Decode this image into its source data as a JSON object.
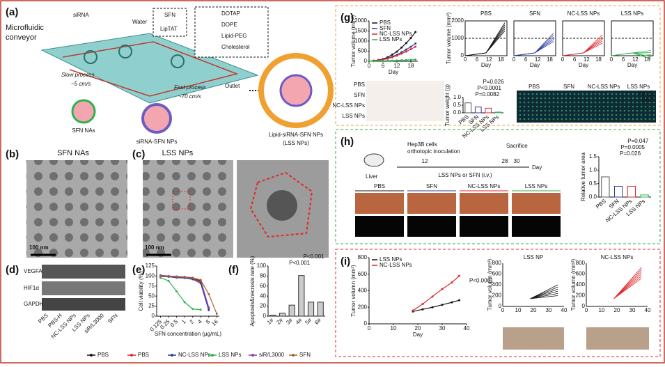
{
  "panel_a": {
    "label": "(a)",
    "conveyor": [
      "Microfluidic",
      "conveyor"
    ],
    "sirna": "siRNA",
    "water": "Water",
    "sfn": "SFN",
    "liptat": "LipTAT",
    "components": [
      "DOTAP",
      "DOPE",
      "Lipid-PEG",
      "Cholesterol"
    ],
    "slow": "Slow process",
    "slow_speed": "~5 cm/s",
    "fast": "Fast process",
    "fast_speed": "~70 cm/s",
    "outlet": "Outlet",
    "products": [
      "SFN NAs",
      "siRNA-SFN NPs",
      "Lipid-siRNA-SFN NPs",
      "(LSS NPs)"
    ]
  },
  "panel_b": {
    "label": "(b)",
    "title": "SFN NAs",
    "scale": "100 nm"
  },
  "panel_c": {
    "label": "(c)",
    "title": "LSS NPs",
    "scale": "100 nm"
  },
  "panel_d": {
    "label": "(d)",
    "rows": [
      "VEGFA",
      "HIF1α",
      "GAPDH"
    ],
    "lanes": [
      "PBS",
      "PBS-H",
      "NC-LSS NPs",
      "LSS NPs",
      "siR/L3000",
      "SFN"
    ]
  },
  "panel_e": {
    "label": "(e)",
    "chart": {
      "type": "line",
      "xscale": "log",
      "xlabel": "SFN concentration (μg/mL)",
      "ylabel": "Cell viability (%)",
      "xlim": [
        0.09,
        20
      ],
      "ylim": [
        0,
        125
      ],
      "yticks": [
        0,
        25,
        50,
        75,
        100,
        125
      ],
      "xticks": [
        0.125,
        0.25,
        0.5,
        1,
        2,
        4,
        8,
        16
      ],
      "series": [
        {
          "name": "PBS",
          "color": "#111111",
          "x": [
            0.125,
            0.25,
            0.5,
            1,
            2,
            4,
            8
          ],
          "values": [
            100,
            99,
            98,
            97,
            95,
            88,
            20
          ]
        },
        {
          "name": "PBS",
          "color": "#e0262b",
          "x": [
            0.125,
            0.25,
            0.5,
            1,
            2,
            4,
            8
          ],
          "values": [
            101,
            100,
            99,
            97,
            94,
            85,
            18
          ]
        },
        {
          "name": "NC-LSS NPs",
          "color": "#2e3d9e",
          "x": [
            0.125,
            0.25,
            0.5,
            1,
            2,
            4,
            8
          ],
          "values": [
            99,
            98,
            96,
            95,
            92,
            82,
            15
          ]
        },
        {
          "name": "LSS NPs",
          "color": "#2bb24c",
          "x": [
            0.125,
            0.25,
            0.5,
            1,
            2,
            4
          ],
          "values": [
            96,
            88,
            62,
            35,
            18,
            16
          ]
        },
        {
          "name": "siR/L3000",
          "color": "#8e3fa5",
          "x": [
            0.125,
            0.25,
            0.5,
            1,
            2,
            4,
            8
          ],
          "values": [
            102,
            100,
            99,
            98,
            96,
            90,
            22
          ]
        },
        {
          "name": "SFN",
          "color": "#a0662a",
          "x": [
            0.125,
            0.25,
            0.5,
            1,
            2,
            4,
            8,
            16
          ],
          "values": [
            100,
            99,
            98,
            97,
            95,
            90,
            55,
            6
          ]
        }
      ]
    }
  },
  "panel_f": {
    "label": "(f)",
    "chart": {
      "type": "bar",
      "ylabel": "Apoptosis&necrosis rate (%)",
      "categories": [
        "1#",
        "2#",
        "3#",
        "4#",
        "5#",
        "6#"
      ],
      "values": [
        2,
        6,
        22,
        81,
        28,
        28
      ],
      "color": "#cccccc",
      "ylim": [
        0,
        100
      ],
      "yticks": [
        0,
        20,
        40,
        60,
        80,
        100
      ],
      "annotations": [
        "P<0.001",
        "P<0.001"
      ]
    }
  },
  "panel_g": {
    "label": "(g)",
    "main": {
      "type": "line",
      "xlabel": "Day",
      "ylabel": "Tumor volume (mm³)",
      "xlim": [
        0,
        21
      ],
      "ylim": [
        0,
        2000
      ],
      "xticks": [
        0,
        6,
        12,
        18
      ],
      "yticks": [
        0,
        500,
        1000,
        1500,
        2000
      ],
      "series": [
        {
          "name": "PBS",
          "color": "#111111",
          "x": [
            0,
            2,
            4,
            6,
            8,
            10,
            12,
            14,
            16,
            18,
            20
          ],
          "values": [
            0,
            30,
            60,
            110,
            200,
            330,
            480,
            680,
            900,
            1150,
            1450
          ]
        },
        {
          "name": "SFN",
          "color": "#2e3d9e",
          "x": [
            0,
            2,
            4,
            6,
            8,
            10,
            12,
            14,
            16,
            18,
            20
          ],
          "values": [
            0,
            25,
            50,
            90,
            150,
            230,
            320,
            450,
            580,
            720,
            880
          ]
        },
        {
          "name": "NC-LSS NPs",
          "color": "#e0262b",
          "x": [
            0,
            2,
            4,
            6,
            8,
            10,
            12,
            14,
            16,
            18,
            20
          ],
          "values": [
            0,
            25,
            45,
            80,
            130,
            200,
            280,
            380,
            480,
            600,
            720
          ]
        },
        {
          "name": "LSS NPs",
          "color": "#2bb24c",
          "x": [
            0,
            2,
            4,
            6,
            8,
            10,
            12,
            14,
            16,
            18,
            20
          ],
          "values": [
            0,
            10,
            15,
            20,
            25,
            30,
            40,
            50,
            60,
            70,
            80
          ]
        }
      ]
    },
    "small_ylabel": "Tumor volume (mm³)",
    "small_xlabel": "Day",
    "small_titles": [
      "PBS",
      "SFN",
      "NC-LSS NPs",
      "LSS NPs"
    ],
    "small_xticks": [
      0,
      6,
      12,
      18
    ],
    "small_yticks": [
      0,
      1000,
      2000
    ],
    "photo_rows": [
      "PBS",
      "SFN",
      "NC-LSS NPs",
      "LSS NPs"
    ],
    "weight": {
      "type": "bar",
      "ylabel": "Tumor weight (g)",
      "categories": [
        "PBS",
        "SFN",
        "NC-LSS NPs",
        "LSS NPs"
      ],
      "values": [
        0.65,
        0.38,
        0.3,
        0.05
      ],
      "colors": [
        "#555555",
        "#2e3d9e",
        "#e0262b",
        "#2bb24c"
      ],
      "ylim": [
        0,
        1
      ],
      "yticks": [
        {
          "value": 0,
          "label": "0.0"
        },
        {
          "value": 0.5,
          "label": "0.5"
        },
        {
          "value": 1,
          "label": "1.0"
        }
      ],
      "annotations": [
        "P=0.0082",
        "P<0.0001",
        "P=0.026"
      ]
    },
    "if_titles": [
      "PBS",
      "SFN",
      "NC-LSS NPs",
      "LSS NPs"
    ],
    "if_legend": [
      "HIF-1α",
      "DAPI"
    ]
  },
  "panel_h": {
    "label": "(h)",
    "liver": "Liver",
    "cells": [
      "Hep3B cells",
      "orthotopic inoculation"
    ],
    "days": [
      "12",
      "28",
      "30"
    ],
    "sacrifice": "Sacrifice",
    "day": "Day",
    "treat": "LSS NPs or SFN (i.v.)",
    "groups": [
      "PBS",
      "SFN",
      "NC-LSS NPs",
      "LSS NPs"
    ],
    "area": {
      "type": "bar",
      "ylabel": "Relative tumor area",
      "categories": [
        "PBS",
        "SFN",
        "NC-LSS NPs",
        "LSS NPs"
      ],
      "values": [
        0.75,
        0.4,
        0.4,
        0.08
      ],
      "colors": [
        "#555555",
        "#2e3d9e",
        "#e0262b",
        "#2bb24c"
      ],
      "ylim": [
        0,
        1.5
      ],
      "yticks": [
        {
          "value": 0,
          "label": "0.0"
        },
        {
          "value": 0.5,
          "label": "0.5"
        },
        {
          "value": 1,
          "label": "1.0"
        },
        {
          "value": 1.5,
          "label": "1.5"
        }
      ],
      "annotations": [
        "P=0.026",
        "P=0.0005",
        "P=0.047"
      ]
    }
  },
  "panel_i": {
    "label": "(i)",
    "main": {
      "type": "line",
      "xlabel": "Day",
      "ylabel": "Tumor volumn (mm³)",
      "xlim": [
        0,
        40
      ],
      "ylim": [
        0,
        800
      ],
      "xticks": [
        0,
        10,
        20,
        30,
        40
      ],
      "yticks": [
        0,
        200,
        400,
        600,
        800
      ],
      "annotation": "P<0.0001",
      "series": [
        {
          "name": "LSS NPs",
          "color": "#111111",
          "x": [
            18,
            22,
            26,
            30,
            34,
            37
          ],
          "values": [
            150,
            175,
            200,
            230,
            260,
            285
          ]
        },
        {
          "name": "NC-LSS NPs",
          "color": "#e0262b",
          "x": [
            18,
            22,
            26,
            30,
            34,
            37
          ],
          "values": [
            160,
            240,
            330,
            420,
            500,
            580
          ]
        }
      ]
    },
    "small_titles": [
      "LSS NP",
      "NC-LSS NPs"
    ],
    "small_ylabel": "Tumor volumn (mm³)",
    "small_xticks": [
      0,
      10,
      20,
      30,
      40
    ],
    "small_yticks": [
      0,
      200,
      400,
      600,
      800
    ]
  }
}
